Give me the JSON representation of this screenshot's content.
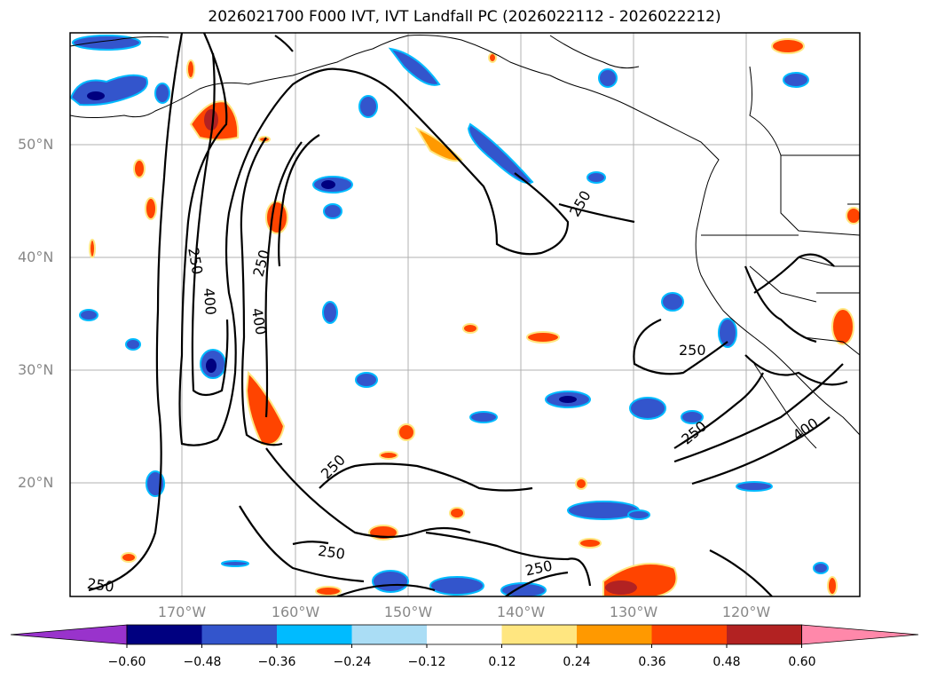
{
  "title": "2026021700 F000 IVT, IVT Landfall PC (2026022112 - 2026022212)",
  "axes": {
    "lat_labels": [
      "50°N",
      "40°N",
      "30°N",
      "20°N"
    ],
    "lon_labels": [
      "170°W",
      "160°W",
      "150°W",
      "140°W",
      "130°W",
      "120°W"
    ]
  },
  "contour_labels": [
    "250",
    "250",
    "250",
    "250",
    "250",
    "250",
    "250",
    "250",
    "250",
    "400",
    "400",
    "400"
  ],
  "colorbar": {
    "ticks": [
      "−0.60",
      "−0.48",
      "−0.36",
      "−0.24",
      "−0.12",
      "0.12",
      "0.24",
      "0.36",
      "0.48",
      "0.60"
    ],
    "colors": [
      "#9933cc",
      "#000080",
      "#3355cc",
      "#00bbff",
      "#aaddf5",
      "#ffffff",
      "#ffe680",
      "#ff9900",
      "#ff4400",
      "#b22222",
      "#ff88aa"
    ]
  },
  "field": {
    "variable": "IVT Landfall PC",
    "contour_variable": "IVT",
    "contour_levels": [
      250,
      400
    ]
  }
}
